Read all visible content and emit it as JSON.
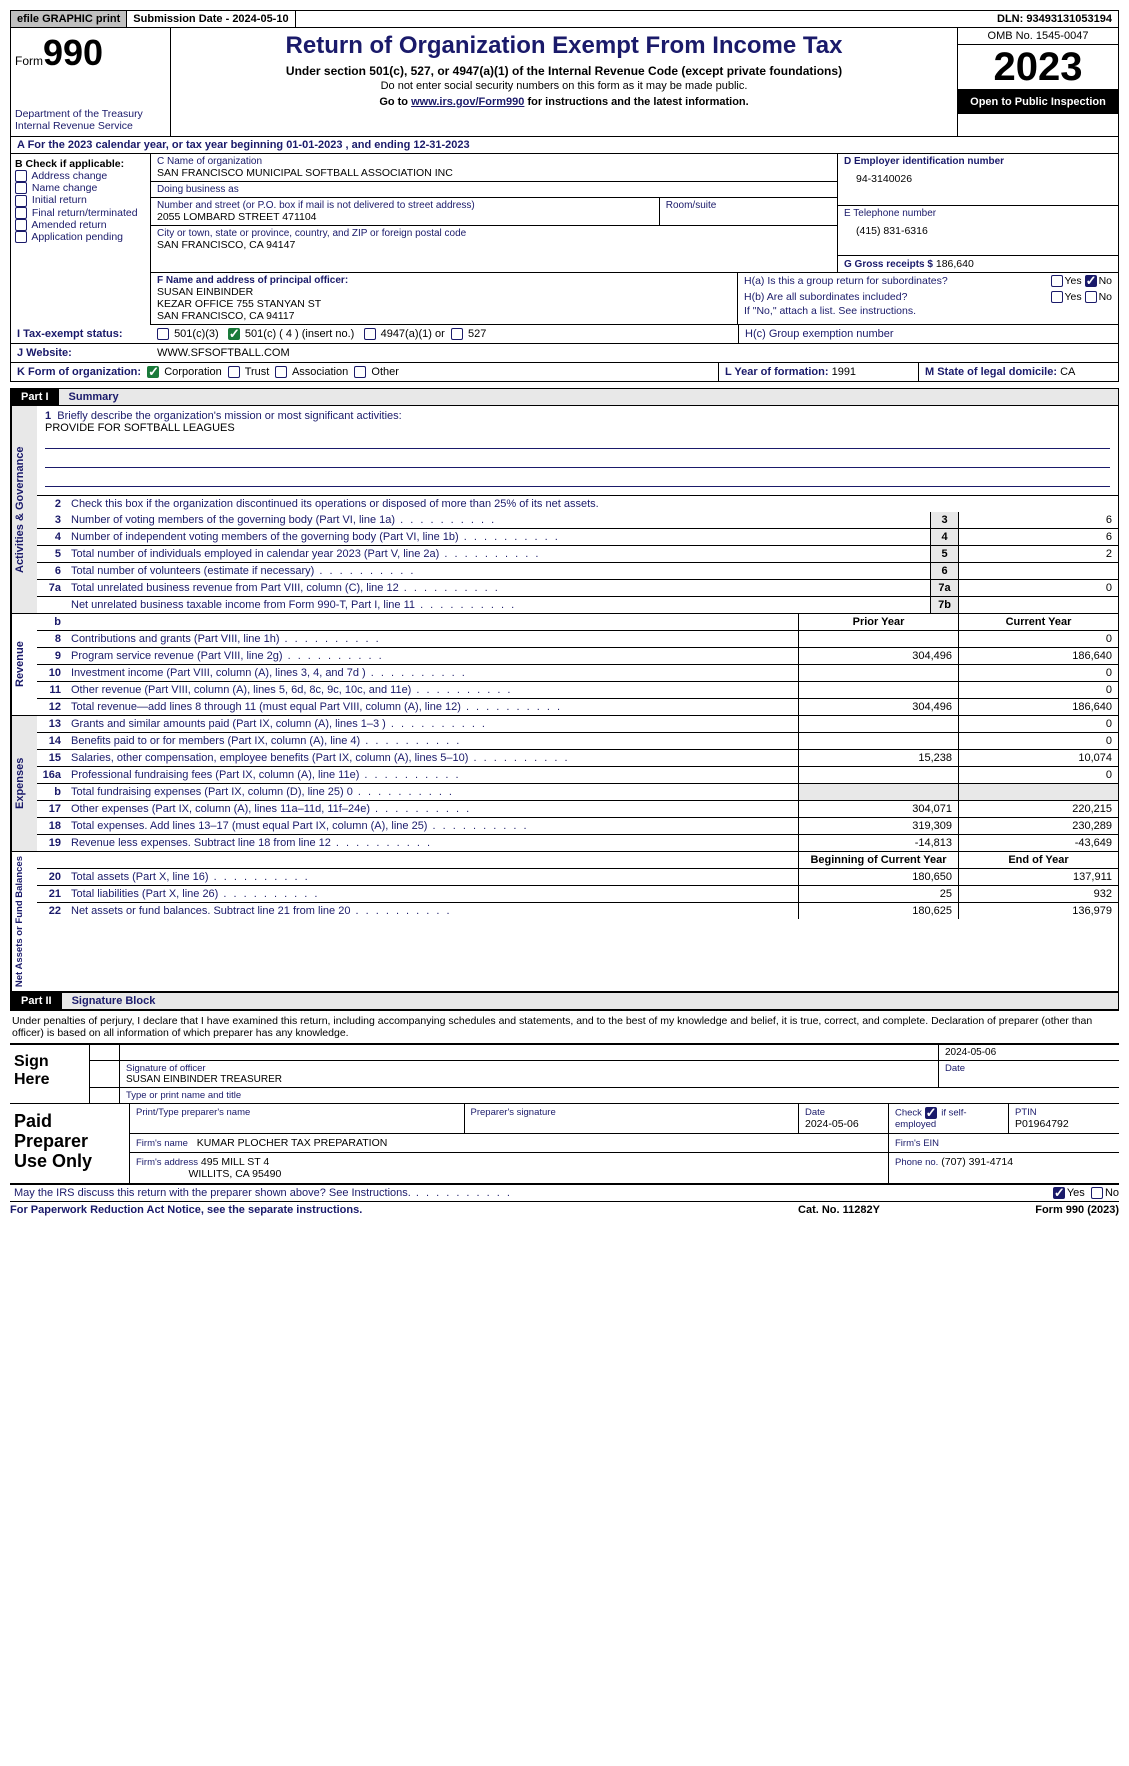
{
  "topbar": {
    "efile": "efile GRAPHIC print",
    "submission": "Submission Date - 2024-05-10",
    "dln_label": "DLN:",
    "dln": "93493131053194"
  },
  "header": {
    "form_prefix": "Form",
    "form_no": "990",
    "dept1": "Department of the Treasury",
    "dept2": "Internal Revenue Service",
    "title": "Return of Organization Exempt From Income Tax",
    "sub": "Under section 501(c), 527, or 4947(a)(1) of the Internal Revenue Code (except private foundations)",
    "note": "Do not enter social security numbers on this form as it may be made public.",
    "goto_prefix": "Go to ",
    "goto_link": "www.irs.gov/Form990",
    "goto_suffix": " for instructions and the latest information.",
    "omb": "OMB No. 1545-0047",
    "year": "2023",
    "open": "Open to Public Inspection"
  },
  "lineA": "A For the 2023 calendar year, or tax year beginning 01-01-2023   , and ending 12-31-2023",
  "boxB": {
    "title": "B Check if applicable:",
    "items": [
      "Address change",
      "Name change",
      "Initial return",
      "Final return/terminated",
      "Amended return",
      "Application pending"
    ]
  },
  "boxC": {
    "name_lbl": "C Name of organization",
    "name": "SAN FRANCISCO MUNICIPAL SOFTBALL ASSOCIATION INC",
    "dba_lbl": "Doing business as",
    "addr_lbl": "Number and street (or P.O. box if mail is not delivered to street address)",
    "addr": "2055 LOMBARD STREET 471104",
    "room_lbl": "Room/suite",
    "city_lbl": "City or town, state or province, country, and ZIP or foreign postal code",
    "city": "SAN FRANCISCO, CA  94147"
  },
  "boxD": {
    "lbl": "D Employer identification number",
    "val": "94-3140026"
  },
  "boxE": {
    "lbl": "E Telephone number",
    "val": "(415) 831-6316"
  },
  "boxG": {
    "lbl": "G Gross receipts $",
    "val": "186,640"
  },
  "boxF": {
    "lbl": "F  Name and address of principal officer:",
    "l1": "SUSAN EINBINDER",
    "l2": "KEZAR OFFICE 755 STANYAN ST",
    "l3": "SAN FRANCISCO, CA  94117"
  },
  "boxH": {
    "ha": "H(a)  Is this a group return for subordinates?",
    "hb": "H(b)  Are all subordinates included?",
    "hb_note": "If \"No,\" attach a list. See instructions.",
    "hc": "H(c)  Group exemption number",
    "yes": "Yes",
    "no": "No"
  },
  "rowI": {
    "lbl": "I  Tax-exempt status:",
    "o1": "501(c)(3)",
    "o2": "501(c) ( 4 ) (insert no.)",
    "o3": "4947(a)(1) or",
    "o4": "527"
  },
  "rowJ": {
    "lbl": "J  Website:",
    "val": "WWW.SFSOFTBALL.COM"
  },
  "rowK": {
    "lbl": "K Form of organization:",
    "o1": "Corporation",
    "o2": "Trust",
    "o3": "Association",
    "o4": "Other",
    "L_lbl": "L Year of formation:",
    "L_val": "1991",
    "M_lbl": "M State of legal domicile:",
    "M_val": "CA"
  },
  "part1": {
    "tag": "Part I",
    "title": "Summary"
  },
  "mission": {
    "n": "1",
    "lbl": "Briefly describe the organization's mission or most significant activities:",
    "val": "PROVIDE FOR SOFTBALL LEAGUES"
  },
  "gov": {
    "side": "Activities & Governance",
    "l2": "Check this box       if the organization discontinued its operations or disposed of more than 25% of its net assets.",
    "rows": [
      {
        "n": "3",
        "d": "Number of voting members of the governing body (Part VI, line 1a)",
        "box": "3",
        "v": "6"
      },
      {
        "n": "4",
        "d": "Number of independent voting members of the governing body (Part VI, line 1b)",
        "box": "4",
        "v": "6"
      },
      {
        "n": "5",
        "d": "Total number of individuals employed in calendar year 2023 (Part V, line 2a)",
        "box": "5",
        "v": "2"
      },
      {
        "n": "6",
        "d": "Total number of volunteers (estimate if necessary)",
        "box": "6",
        "v": ""
      },
      {
        "n": "7a",
        "d": "Total unrelated business revenue from Part VIII, column (C), line 12",
        "box": "7a",
        "v": "0"
      },
      {
        "n": "",
        "d": "Net unrelated business taxable income from Form 990-T, Part I, line 11",
        "box": "7b",
        "v": ""
      }
    ]
  },
  "rev": {
    "side": "Revenue",
    "hdr_b": "b",
    "hdr_py": "Prior Year",
    "hdr_cy": "Current Year",
    "rows": [
      {
        "n": "8",
        "d": "Contributions and grants (Part VIII, line 1h)",
        "py": "",
        "cy": "0"
      },
      {
        "n": "9",
        "d": "Program service revenue (Part VIII, line 2g)",
        "py": "304,496",
        "cy": "186,640"
      },
      {
        "n": "10",
        "d": "Investment income (Part VIII, column (A), lines 3, 4, and 7d )",
        "py": "",
        "cy": "0"
      },
      {
        "n": "11",
        "d": "Other revenue (Part VIII, column (A), lines 5, 6d, 8c, 9c, 10c, and 11e)",
        "py": "",
        "cy": "0"
      },
      {
        "n": "12",
        "d": "Total revenue—add lines 8 through 11 (must equal Part VIII, column (A), line 12)",
        "py": "304,496",
        "cy": "186,640"
      }
    ]
  },
  "exp": {
    "side": "Expenses",
    "rows": [
      {
        "n": "13",
        "d": "Grants and similar amounts paid (Part IX, column (A), lines 1–3 )",
        "py": "",
        "cy": "0"
      },
      {
        "n": "14",
        "d": "Benefits paid to or for members (Part IX, column (A), line 4)",
        "py": "",
        "cy": "0"
      },
      {
        "n": "15",
        "d": "Salaries, other compensation, employee benefits (Part IX, column (A), lines 5–10)",
        "py": "15,238",
        "cy": "10,074"
      },
      {
        "n": "16a",
        "d": "Professional fundraising fees (Part IX, column (A), line 11e)",
        "py": "",
        "cy": "0"
      },
      {
        "n": "b",
        "d": "Total fundraising expenses (Part IX, column (D), line 25) 0",
        "py": "grey",
        "cy": "grey"
      },
      {
        "n": "17",
        "d": "Other expenses (Part IX, column (A), lines 11a–11d, 11f–24e)",
        "py": "304,071",
        "cy": "220,215"
      },
      {
        "n": "18",
        "d": "Total expenses. Add lines 13–17 (must equal Part IX, column (A), line 25)",
        "py": "319,309",
        "cy": "230,289"
      },
      {
        "n": "19",
        "d": "Revenue less expenses. Subtract line 18 from line 12",
        "py": "-14,813",
        "cy": "-43,649"
      }
    ]
  },
  "net": {
    "side": "Net Assets or Fund Balances",
    "hdr_b": "Beginning of Current Year",
    "hdr_e": "End of Year",
    "rows": [
      {
        "n": "20",
        "d": "Total assets (Part X, line 16)",
        "b": "180,650",
        "e": "137,911"
      },
      {
        "n": "21",
        "d": "Total liabilities (Part X, line 26)",
        "b": "25",
        "e": "932"
      },
      {
        "n": "22",
        "d": "Net assets or fund balances. Subtract line 21 from line 20",
        "b": "180,625",
        "e": "136,979"
      }
    ]
  },
  "part2": {
    "tag": "Part II",
    "title": "Signature Block"
  },
  "penalty": "Under penalties of perjury, I declare that I have examined this return, including accompanying schedules and statements, and to the best of my knowledge and belief, it is true, correct, and complete. Declaration of preparer (other than officer) is based on all information of which preparer has any knowledge.",
  "sign": {
    "left": "Sign Here",
    "date": "2024-05-06",
    "sig_lbl": "Signature of officer",
    "name": "SUSAN EINBINDER  TREASURER",
    "name_lbl": "Type or print name and title",
    "date_lbl": "Date"
  },
  "prep": {
    "left": "Paid Preparer Use Only",
    "h1": "Print/Type preparer's name",
    "h2": "Preparer's signature",
    "h3_lbl": "Date",
    "h3": "2024-05-06",
    "h4_lbl": "Check         if self-employed",
    "h5_lbl": "PTIN",
    "h5": "P01964792",
    "firm_name_lbl": "Firm's name",
    "firm_name": "KUMAR PLOCHER TAX PREPARATION",
    "firm_ein_lbl": "Firm's EIN",
    "firm_addr_lbl": "Firm's address",
    "firm_addr1": "495 MILL ST 4",
    "firm_addr2": "WILLITS, CA  95490",
    "firm_phone_lbl": "Phone no.",
    "firm_phone": "(707) 391-4714"
  },
  "footer_q": "May the IRS discuss this return with the preparer shown above? See Instructions.",
  "footer_yes": "Yes",
  "footer_no": "No",
  "last": {
    "l": "For Paperwork Reduction Act Notice, see the separate instructions.",
    "m": "Cat. No. 11282Y",
    "r": "Form 990 (2023)"
  }
}
